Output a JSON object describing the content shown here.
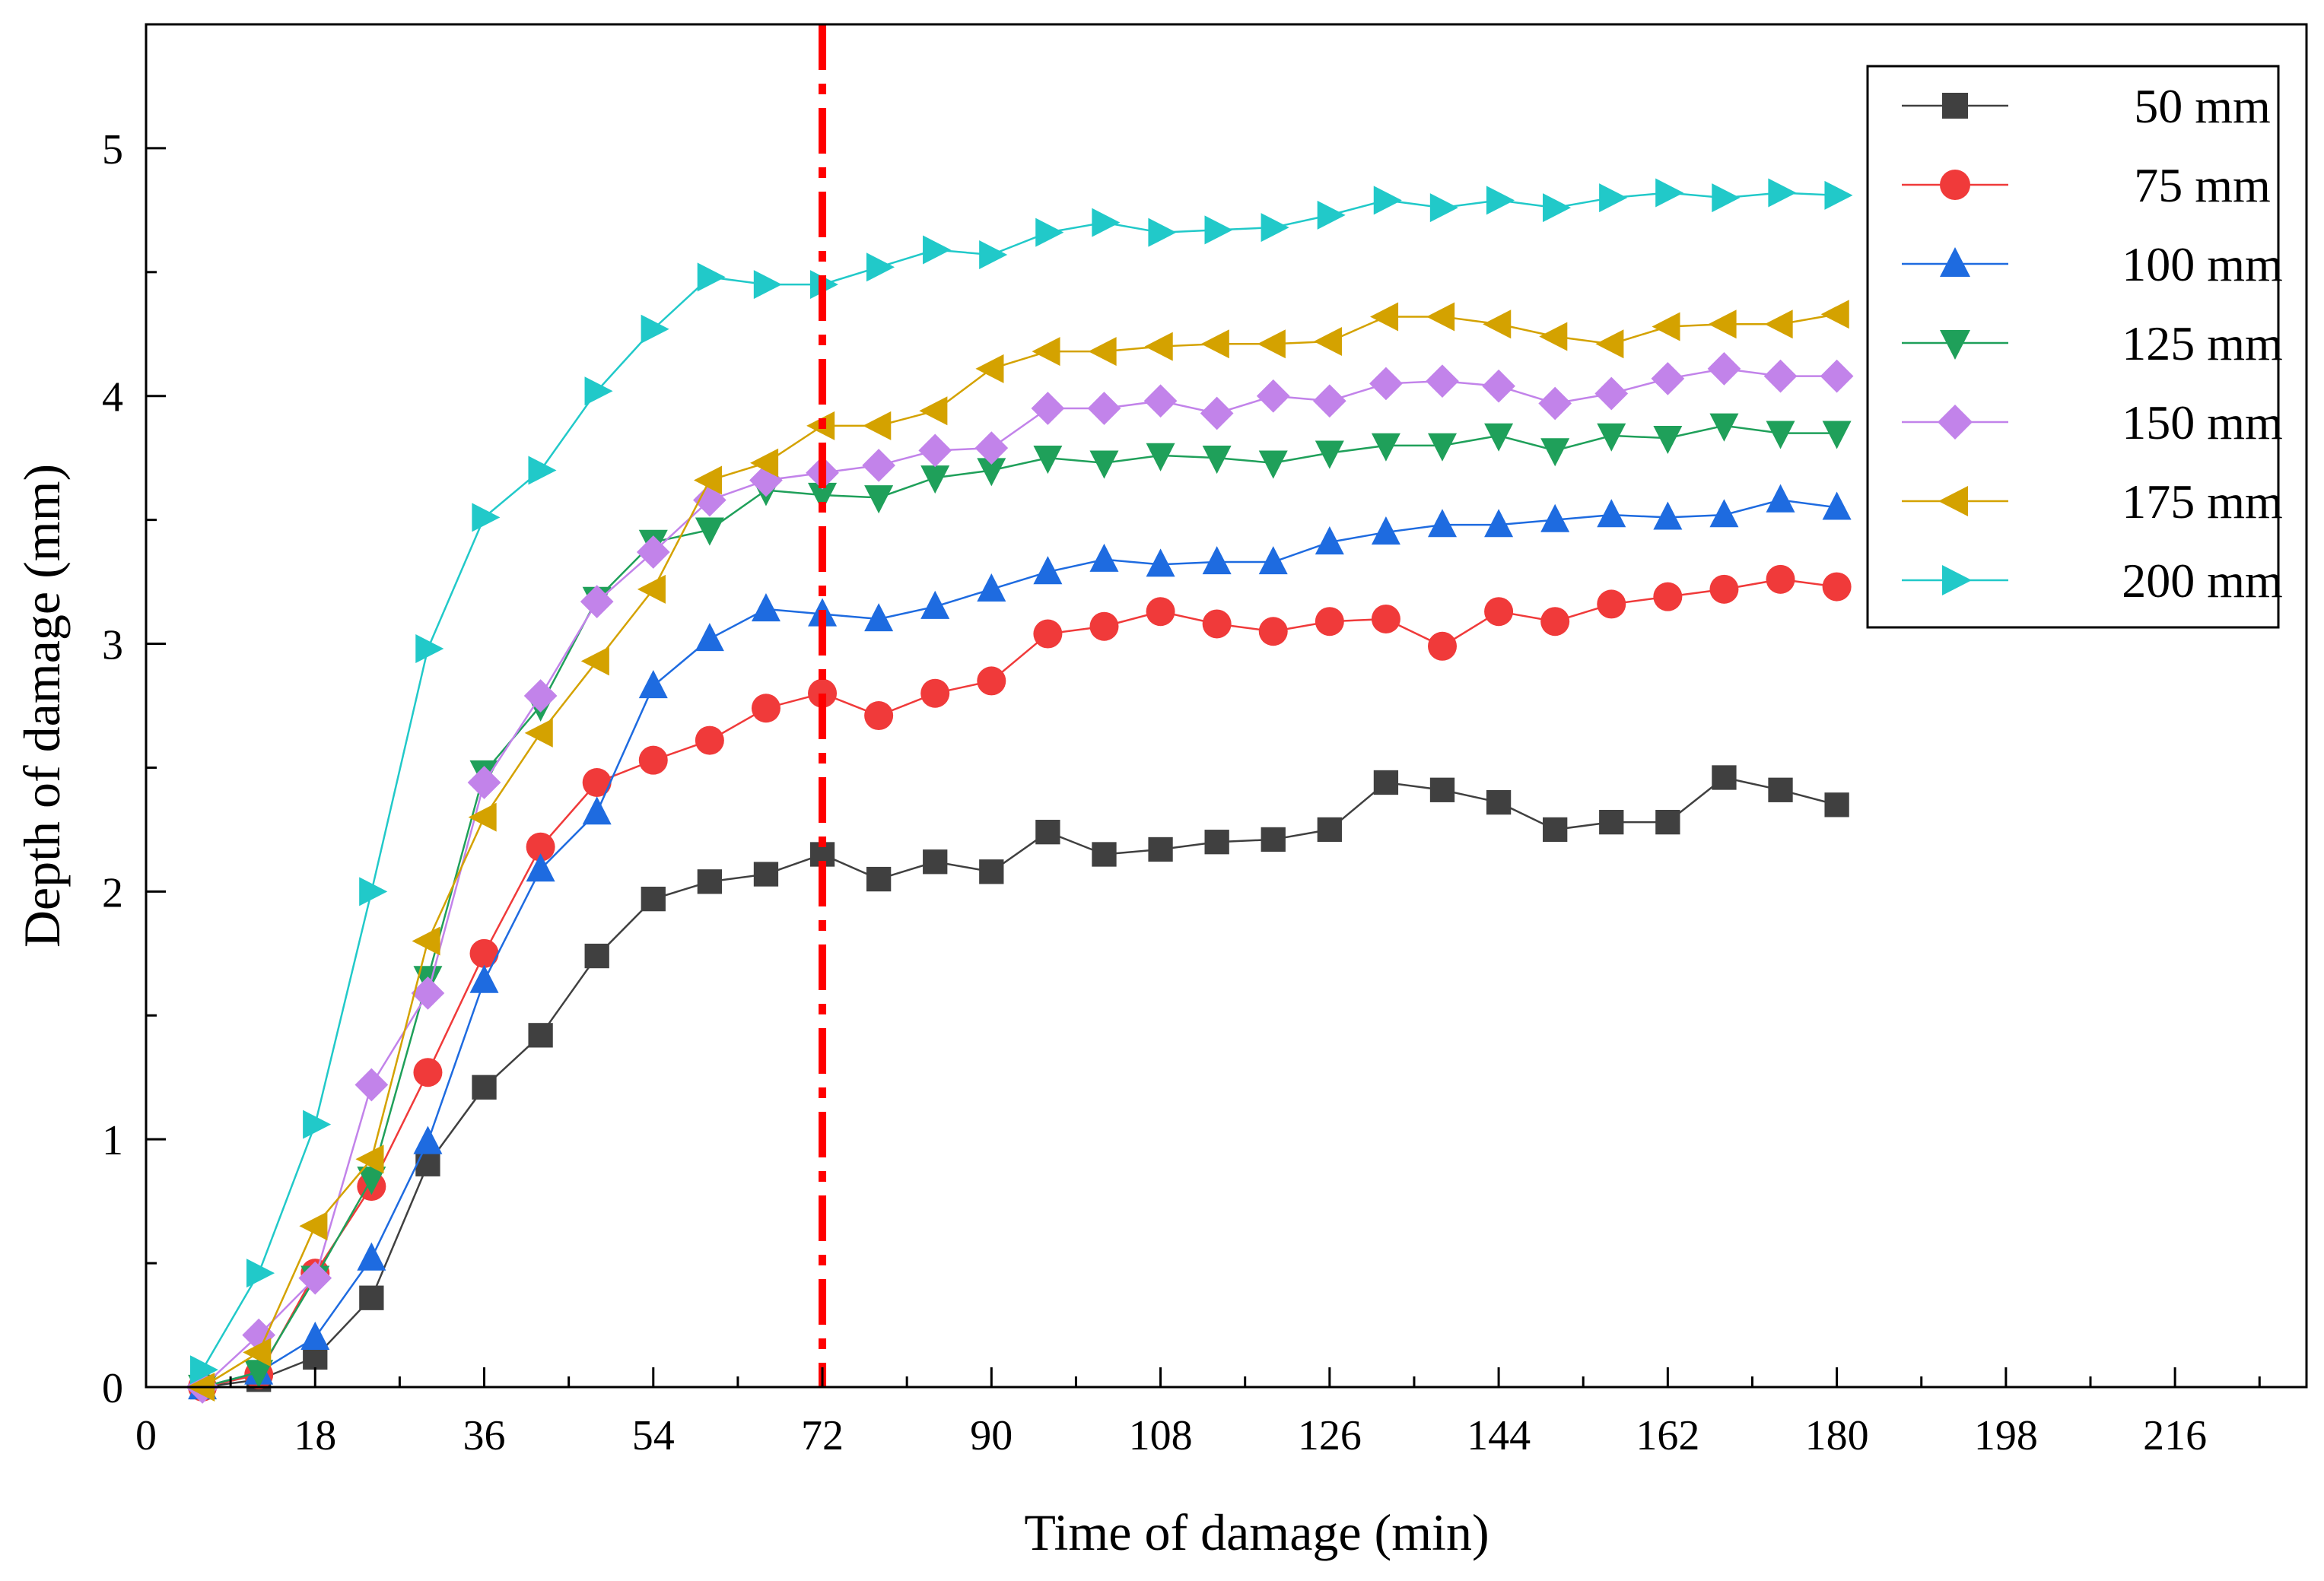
{
  "chart_data": {
    "type": "line",
    "title": "",
    "xlabel": "Time of damage (min)",
    "ylabel": "Depth of damage (mm)",
    "xlim": [
      0,
      230
    ],
    "ylim": [
      0,
      5.5
    ],
    "xticks": [
      0,
      18,
      36,
      54,
      72,
      90,
      108,
      126,
      144,
      162,
      180,
      198,
      216
    ],
    "yticks": [
      0,
      1,
      2,
      3,
      4,
      5
    ],
    "x": [
      6,
      12,
      18,
      24,
      30,
      36,
      42,
      48,
      54,
      60,
      66,
      72,
      78,
      84,
      90,
      96,
      102,
      108,
      114,
      120,
      126,
      132,
      138,
      144,
      150,
      156,
      162,
      168,
      174,
      180
    ],
    "vline": {
      "x": 72,
      "color": "#ff0000"
    },
    "legend_position": "top-right",
    "series": [
      {
        "name": "50 mm",
        "color": "#404040",
        "line_color": "#404040",
        "marker": "square",
        "values": [
          0.0,
          0.03,
          0.12,
          0.36,
          0.9,
          1.21,
          1.42,
          1.74,
          1.97,
          2.04,
          2.07,
          2.15,
          2.05,
          2.12,
          2.08,
          2.24,
          2.15,
          2.17,
          2.2,
          2.21,
          2.25,
          2.44,
          2.41,
          2.36,
          2.25,
          2.28,
          2.28,
          2.46,
          2.41,
          2.35
        ]
      },
      {
        "name": "75 mm",
        "color": "#f03a3a",
        "line_color": "#f03a3a",
        "marker": "circle",
        "values": [
          0.0,
          0.05,
          0.46,
          0.81,
          1.27,
          1.75,
          2.18,
          2.44,
          2.53,
          2.61,
          2.74,
          2.8,
          2.71,
          2.8,
          2.85,
          3.04,
          3.07,
          3.13,
          3.08,
          3.05,
          3.09,
          3.1,
          2.99,
          3.13,
          3.09,
          3.16,
          3.19,
          3.22,
          3.26,
          3.23
        ]
      },
      {
        "name": "100 mm",
        "color": "#1e6be0",
        "line_color": "#1e6be0",
        "marker": "triangle-up",
        "values": [
          0.0,
          0.06,
          0.2,
          0.52,
          0.99,
          1.64,
          2.09,
          2.32,
          2.83,
          3.02,
          3.14,
          3.12,
          3.1,
          3.15,
          3.22,
          3.29,
          3.34,
          3.32,
          3.33,
          3.33,
          3.41,
          3.45,
          3.48,
          3.48,
          3.5,
          3.52,
          3.51,
          3.52,
          3.58,
          3.55
        ]
      },
      {
        "name": "125 mm",
        "color": "#1fa05a",
        "line_color": "#1fa05a",
        "marker": "triangle-down",
        "values": [
          0.0,
          0.06,
          0.44,
          0.84,
          1.65,
          2.48,
          2.75,
          3.18,
          3.41,
          3.46,
          3.62,
          3.6,
          3.59,
          3.67,
          3.7,
          3.75,
          3.73,
          3.76,
          3.75,
          3.73,
          3.77,
          3.8,
          3.8,
          3.84,
          3.78,
          3.84,
          3.83,
          3.88,
          3.85,
          3.85
        ]
      },
      {
        "name": "150 mm",
        "color": "#c283ea",
        "line_color": "#c283ea",
        "marker": "diamond",
        "values": [
          0.0,
          0.21,
          0.44,
          1.22,
          1.59,
          2.44,
          2.79,
          3.17,
          3.37,
          3.58,
          3.66,
          3.69,
          3.72,
          3.78,
          3.79,
          3.95,
          3.95,
          3.98,
          3.93,
          4.0,
          3.98,
          4.05,
          4.06,
          4.04,
          3.97,
          4.01,
          4.07,
          4.11,
          4.08,
          4.08
        ]
      },
      {
        "name": "175 mm",
        "color": "#d4a200",
        "line_color": "#d4a200",
        "marker": "triangle-left",
        "values": [
          0.0,
          0.14,
          0.65,
          0.92,
          1.8,
          2.3,
          2.64,
          2.93,
          3.22,
          3.66,
          3.73,
          3.88,
          3.88,
          3.94,
          4.11,
          4.18,
          4.18,
          4.2,
          4.21,
          4.21,
          4.22,
          4.32,
          4.32,
          4.29,
          4.24,
          4.21,
          4.28,
          4.29,
          4.29,
          4.33
        ]
      },
      {
        "name": "200 mm",
        "color": "#21c9c9",
        "line_color": "#21c9c9",
        "marker": "triangle-right",
        "values": [
          0.07,
          0.46,
          1.06,
          2.0,
          2.98,
          3.51,
          3.7,
          4.02,
          4.27,
          4.48,
          4.45,
          4.45,
          4.52,
          4.59,
          4.57,
          4.66,
          4.7,
          4.66,
          4.67,
          4.68,
          4.73,
          4.79,
          4.76,
          4.79,
          4.76,
          4.8,
          4.82,
          4.8,
          4.82,
          4.81
        ]
      }
    ]
  }
}
